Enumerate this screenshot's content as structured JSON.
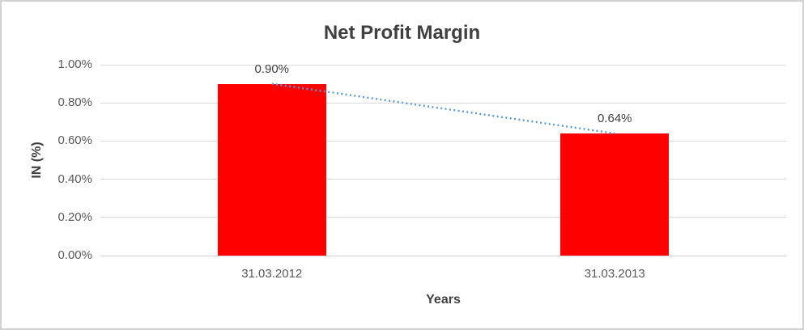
{
  "chart_data": {
    "type": "bar",
    "title": "Net Profit Margin",
    "xlabel": "Years",
    "ylabel": "IN (%)",
    "categories": [
      "31.03.2012",
      "31.03.2013"
    ],
    "series": [
      {
        "name": "Net Profit Margin",
        "values": [
          0.9,
          0.64
        ]
      }
    ],
    "data_labels": [
      "0.90%",
      "0.64%"
    ],
    "yticks": [
      {
        "value": 1.0,
        "label": "1.00%"
      },
      {
        "value": 0.8,
        "label": "0.80%"
      },
      {
        "value": 0.6,
        "label": "0.60%"
      },
      {
        "value": 0.4,
        "label": "0.40%"
      },
      {
        "value": 0.2,
        "label": "0.20%"
      },
      {
        "value": 0.0,
        "label": "0.00%"
      }
    ],
    "ylim": [
      0,
      1.0
    ],
    "grid": true,
    "legend": "none",
    "trendline": {
      "type": "linear",
      "style": "dotted",
      "from": 0.9,
      "to": 0.64
    }
  },
  "colors": {
    "bar": "#ff0000",
    "trendline": "#5b9bd5",
    "gridline": "#d9d9d9",
    "axis_line": "#d0d0d0",
    "title_text": "#404040",
    "tick_text": "#595959",
    "border": "#d2d2d2"
  }
}
